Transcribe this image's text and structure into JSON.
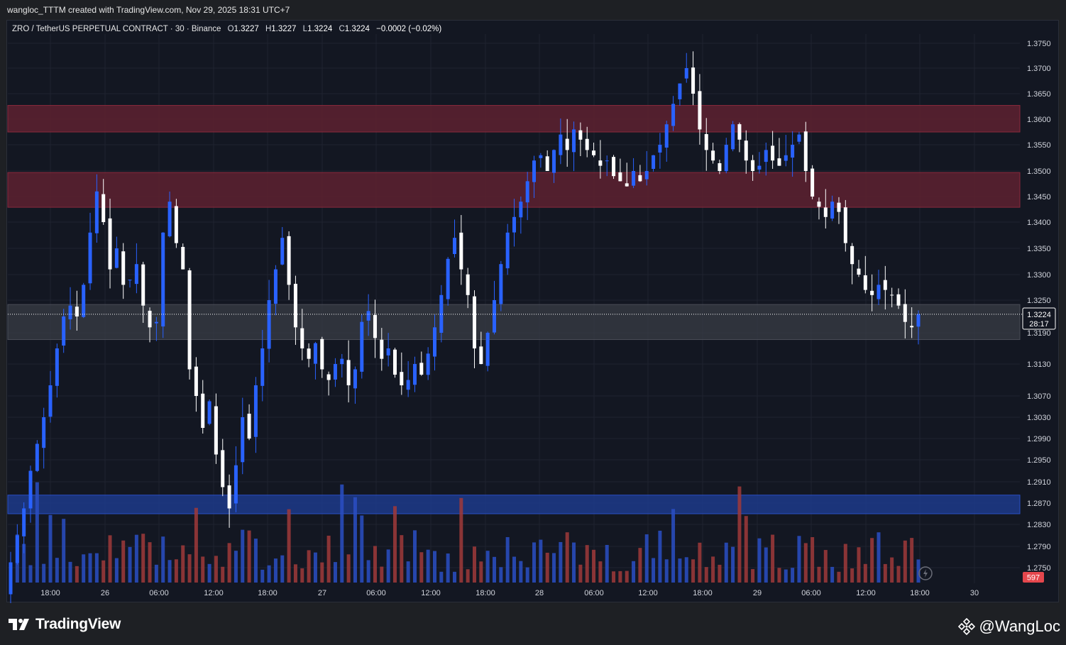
{
  "header": {
    "credit": "wangloc_TTTM created with TradingView.com, Nov 29, 2025 18:31 UTC+7"
  },
  "legend": {
    "symbol": "ZRO / TetherUS PERPETUAL CONTRACT · 30 · Binance",
    "open_label": "O",
    "open": "1.3227",
    "high_label": "H",
    "high": "1.3227",
    "low_label": "L",
    "low": "1.3224",
    "close_label": "C",
    "close": "1.3224",
    "change": "−0.0002 (−0.02%)"
  },
  "price_tag": {
    "price": "1.3224",
    "countdown": "28:17"
  },
  "volume_tag": "597",
  "footer": {
    "brand": "TradingView",
    "watermark": "@WangLoc"
  },
  "colors": {
    "background": "#131722",
    "up_candle": "#2962ff",
    "down_candle": "#ffffff",
    "volume_up": "#2a4fc4",
    "volume_down": "#a03a3a",
    "resistance_zone": "#5a2030",
    "support_zone": "#1d3a8a",
    "current_zone": "#3a3d46"
  },
  "chart_data": {
    "type": "candlestick",
    "y_ticks": [
      "1.3750",
      "1.3700",
      "1.3650",
      "1.3600",
      "1.3550",
      "1.3500",
      "1.3450",
      "1.3400",
      "1.3350",
      "1.3300",
      "1.3250",
      "1.3190",
      "1.3130",
      "1.3070",
      "1.3030",
      "1.2990",
      "1.2950",
      "1.2910",
      "1.2870",
      "1.2830",
      "1.2790",
      "1.2750"
    ],
    "x_ticks": [
      "18:00",
      "26",
      "06:00",
      "12:00",
      "18:00",
      "27",
      "06:00",
      "12:00",
      "18:00",
      "28",
      "06:00",
      "12:00",
      "18:00",
      "29",
      "06:00",
      "12:00",
      "18:00",
      "30"
    ],
    "zones": [
      {
        "type": "resistance",
        "from": 1.3575,
        "to": 1.3627
      },
      {
        "type": "resistance",
        "from": 1.3429,
        "to": 1.3497
      },
      {
        "type": "current",
        "from": 1.3177,
        "to": 1.3242
      },
      {
        "type": "support",
        "from": 1.285,
        "to": 1.2885
      }
    ],
    "last_price": 1.3224,
    "closes": [
      1.276,
      1.281,
      1.286,
      1.293,
      1.298,
      1.303,
      1.309,
      1.316,
      1.322,
      1.324,
      1.322,
      1.328,
      1.338,
      1.346,
      1.34,
      1.331,
      1.335,
      1.328,
      1.329,
      1.332,
      1.324,
      1.32,
      1.321,
      1.338,
      1.344,
      1.336,
      1.331,
      1.312,
      1.307,
      1.301,
      1.306,
      1.296,
      1.29,
      1.286,
      1.294,
      1.303,
      1.299,
      1.309,
      1.316,
      1.325,
      1.331,
      1.337,
      1.328,
      1.32,
      1.316,
      1.314,
      1.317,
      1.312,
      1.31,
      1.313,
      1.314,
      1.309,
      1.312,
      1.321,
      1.323,
      1.318,
      1.314,
      1.316,
      1.311,
      1.309,
      1.31,
      1.313,
      1.311,
      1.315,
      1.32,
      1.326,
      1.333,
      1.337,
      1.331,
      1.326,
      1.316,
      1.313,
      1.319,
      1.325,
      1.332,
      1.338,
      1.341,
      1.344,
      1.348,
      1.352,
      1.353,
      1.35,
      1.354,
      1.357,
      1.354,
      1.358,
      1.356,
      1.354,
      1.353,
      1.351,
      1.352,
      1.349,
      1.348,
      1.347,
      1.35,
      1.348,
      1.35,
      1.353,
      1.355,
      1.359,
      1.363,
      1.367,
      1.37,
      1.365,
      1.358,
      1.354,
      1.352,
      1.35,
      1.355,
      1.359,
      1.356,
      1.352,
      1.35,
      1.351,
      1.354,
      1.352,
      1.351,
      1.353,
      1.355,
      1.357,
      1.35,
      1.345,
      1.343,
      1.341,
      1.344,
      1.342,
      1.336,
      1.332,
      1.33,
      1.327,
      1.326,
      1.328,
      1.327,
      1.326,
      1.324,
      1.321,
      1.32,
      1.3224
    ]
  }
}
